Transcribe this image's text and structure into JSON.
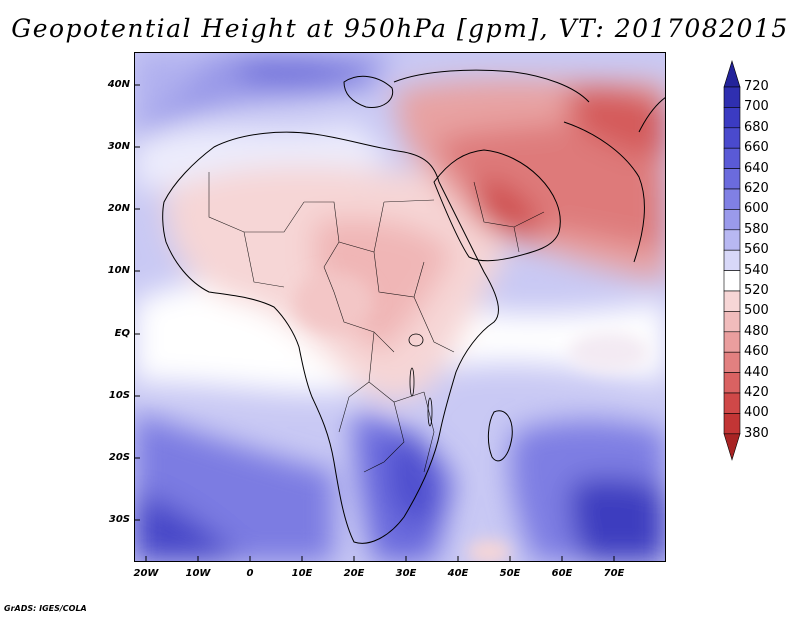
{
  "title": "Geopotential Height at 950hPa [gpm], VT: 2017082015",
  "footer": "GrADS: IGES/COLA",
  "map": {
    "lat_labels": [
      "40N",
      "30N",
      "20N",
      "10N",
      "EQ",
      "10S",
      "20S",
      "30S"
    ],
    "lon_labels": [
      "20W",
      "10W",
      "0",
      "10E",
      "20E",
      "30E",
      "40E",
      "50E",
      "60E",
      "70E"
    ]
  },
  "colorbar": {
    "labels": [
      "720",
      "700",
      "680",
      "660",
      "640",
      "620",
      "600",
      "580",
      "560",
      "540",
      "520",
      "500",
      "480",
      "460",
      "440",
      "420",
      "400",
      "380"
    ],
    "colors": [
      "#23239a",
      "#2f2fb0",
      "#3b3bc2",
      "#4a4acd",
      "#5a5ad6",
      "#6b6bdd",
      "#8080e4",
      "#9a9aeb",
      "#b8b8f2",
      "#d8d8f8",
      "#ffffff",
      "#f7d6d6",
      "#f1bcbc",
      "#ea9e9e",
      "#e28080",
      "#d96262",
      "#cf4848",
      "#c23535",
      "#a82424"
    ]
  }
}
